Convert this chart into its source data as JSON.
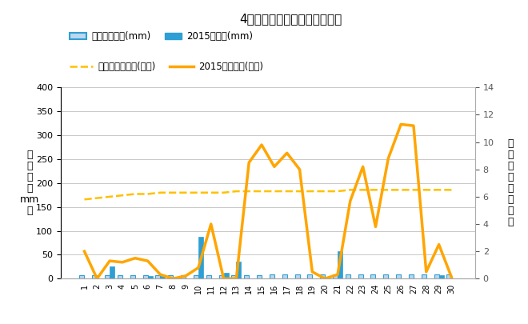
{
  "title": "4月降水量・日照時間（日別）",
  "days": [
    1,
    2,
    3,
    4,
    5,
    6,
    7,
    8,
    9,
    10,
    11,
    12,
    13,
    14,
    15,
    16,
    17,
    18,
    19,
    20,
    21,
    22,
    23,
    24,
    25,
    26,
    27,
    28,
    29,
    30
  ],
  "precip_avg": [
    7,
    7,
    7,
    7,
    7,
    7,
    7,
    7,
    7,
    8,
    8,
    8,
    8,
    8,
    8,
    9,
    9,
    9,
    9,
    9,
    9,
    9,
    9,
    9,
    9,
    9,
    9,
    9,
    9,
    9
  ],
  "precip_2015": [
    0,
    0,
    25,
    0,
    0,
    5,
    5,
    0,
    0,
    88,
    0,
    12,
    35,
    0,
    0,
    0,
    0,
    0,
    0,
    0,
    58,
    0,
    0,
    0,
    0,
    0,
    0,
    0,
    8,
    0
  ],
  "sunshine_avg": [
    5.8,
    5.9,
    6.0,
    6.1,
    6.2,
    6.2,
    6.3,
    6.3,
    6.3,
    6.3,
    6.3,
    6.3,
    6.4,
    6.4,
    6.4,
    6.4,
    6.4,
    6.4,
    6.4,
    6.4,
    6.4,
    6.5,
    6.5,
    6.5,
    6.5,
    6.5,
    6.5,
    6.5,
    6.5,
    6.5
  ],
  "sunshine_2015": [
    2.0,
    0.0,
    1.3,
    1.2,
    1.5,
    1.3,
    0.3,
    0.0,
    0.2,
    0.8,
    4.0,
    0.0,
    0.0,
    8.5,
    9.8,
    8.2,
    9.2,
    8.0,
    0.5,
    0.0,
    0.3,
    5.7,
    8.2,
    3.8,
    8.8,
    11.3,
    11.2,
    0.5,
    2.5,
    0.1
  ],
  "bar_avg_color": "#bdd7ee",
  "bar_avg_edge": "#2E9FD4",
  "bar_2015_color": "#2E9FD4",
  "line_avg_color": "#FFC000",
  "line_2015_color": "#FFA500",
  "ylabel_left_kanji": "降\n水\n量\n（\nmm\n）",
  "ylabel_right_kanji": "日\n照\n時\n間\n（\n時\n間\n）",
  "ylim_left": [
    0,
    400
  ],
  "ylim_right": [
    0,
    14
  ],
  "yticks_left": [
    0,
    50,
    100,
    150,
    200,
    250,
    300,
    350,
    400
  ],
  "yticks_right": [
    0,
    2,
    4,
    6,
    8,
    10,
    12,
    14
  ],
  "legend_label_precip_avg": "降水量平年値(mm)",
  "legend_label_precip_2015": "2015降水量(mm)",
  "legend_label_sun_avg": "日照時間平年値(時間)",
  "legend_label_sun_2015": "2015日照時間(時間)",
  "background_color": "#ffffff",
  "grid_color": "#c8c8c8"
}
